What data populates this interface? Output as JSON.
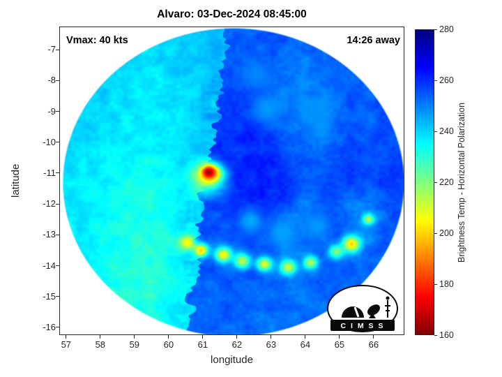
{
  "title": "Alvaro: 03-Dec-2024 08:45:00",
  "annotations": {
    "vmax": "Vmax: 40 kts",
    "time_away": "14:26 away"
  },
  "logo": {
    "text": "C I M S S"
  },
  "chart_data": {
    "type": "heatmap",
    "title": "Alvaro: 03-Dec-2024 08:45:00",
    "xlabel": "longitude",
    "ylabel": "latitude",
    "xlim": [
      56.8,
      66.9
    ],
    "ylim": [
      -16.25,
      -6.25
    ],
    "x_ticks": [
      57,
      58,
      59,
      60,
      61,
      62,
      63,
      64,
      65,
      66
    ],
    "y_ticks": [
      -7,
      -8,
      -9,
      -10,
      -11,
      -12,
      -13,
      -14,
      -15,
      -16
    ],
    "grid_on": false,
    "legend": "colorbar-right",
    "colorbar": {
      "label": "Brightness Temp - Horizontal Polarization",
      "min": 160,
      "max": 280,
      "ticks": [
        160,
        180,
        200,
        220,
        240,
        260,
        280
      ],
      "colormap": "jet_reversed"
    },
    "disk": {
      "center_lon": 61.9,
      "center_lat": -11.3,
      "radius_deg": 5.0
    },
    "swath_edge": {
      "description": "jagged boundary between warmer cyan swath (west, ~232-244 K) and colder blue swath (east, ~248-262 K)",
      "lon_at_lat": [
        [
          -7,
          61.6
        ],
        [
          -11,
          61.15
        ],
        [
          -15,
          60.66
        ]
      ]
    },
    "grid": {
      "lon_start": 56.9,
      "lon_end": 66.9,
      "lat_start": -6.3,
      "lat_end": -16.3,
      "values": [
        [
          242,
          242,
          242,
          242,
          241,
          241,
          240,
          240,
          241,
          242,
          252,
          253,
          254,
          254,
          253,
          253,
          252,
          252,
          252,
          252,
          252
        ],
        [
          243,
          243,
          242,
          241,
          240,
          239,
          239,
          240,
          241,
          243,
          253,
          255,
          255,
          254,
          253,
          252,
          251,
          251,
          250,
          251,
          252
        ],
        [
          242,
          242,
          241,
          240,
          238,
          238,
          239,
          240,
          241,
          246,
          255,
          256,
          255,
          250,
          249,
          251,
          252,
          252,
          251,
          252,
          253
        ],
        [
          241,
          241,
          240,
          239,
          238,
          237,
          238,
          239,
          240,
          250,
          257,
          257,
          255,
          251,
          248,
          250,
          253,
          254,
          253,
          254,
          254
        ],
        [
          240,
          240,
          239,
          238,
          237,
          236,
          237,
          238,
          240,
          254,
          258,
          259,
          257,
          253,
          250,
          247,
          252,
          255,
          254,
          255,
          255
        ],
        [
          240,
          239,
          238,
          237,
          236,
          235,
          236,
          238,
          241,
          254,
          259,
          260,
          259,
          256,
          253,
          250,
          254,
          256,
          255,
          256,
          256
        ],
        [
          239,
          238,
          237,
          236,
          235,
          234,
          236,
          238,
          242,
          252,
          260,
          261,
          260,
          258,
          255,
          253,
          256,
          257,
          256,
          257,
          257
        ],
        [
          238,
          238,
          236,
          235,
          234,
          233,
          235,
          237,
          241,
          250,
          259,
          261,
          261,
          259,
          257,
          255,
          257,
          258,
          257,
          257,
          257
        ],
        [
          238,
          237,
          236,
          234,
          233,
          232,
          234,
          236,
          244,
          252,
          258,
          260,
          260,
          258,
          250,
          253,
          257,
          250,
          248,
          255,
          256
        ],
        [
          237,
          237,
          235,
          233,
          232,
          231,
          233,
          236,
          248,
          254,
          257,
          258,
          257,
          248,
          252,
          255,
          256,
          252,
          249,
          254,
          255
        ],
        [
          237,
          236,
          235,
          233,
          231,
          230,
          232,
          236,
          250,
          253,
          255,
          256,
          254,
          250,
          252,
          254,
          255,
          249,
          252,
          254,
          254
        ],
        [
          236,
          236,
          234,
          232,
          231,
          230,
          232,
          237,
          252,
          254,
          255,
          255,
          253,
          251,
          250,
          253,
          254,
          253,
          253,
          253,
          253
        ],
        [
          236,
          235,
          234,
          232,
          231,
          230,
          233,
          238,
          252,
          254,
          254,
          254,
          253,
          252,
          252,
          253,
          253,
          252,
          252,
          252,
          252
        ],
        [
          236,
          235,
          234,
          233,
          232,
          231,
          234,
          240,
          251,
          253,
          253,
          253,
          252,
          252,
          252,
          252,
          252,
          252,
          252,
          252,
          252
        ],
        [
          236,
          236,
          235,
          234,
          233,
          232,
          235,
          242,
          250,
          252,
          252,
          252,
          252,
          251,
          251,
          251,
          251,
          251,
          251,
          251,
          251
        ]
      ]
    },
    "features": [
      {
        "name": "eyewall-halo",
        "lon": 61.1,
        "lat": -11.15,
        "value": 212,
        "sigma": 0.32
      },
      {
        "name": "eyewall-ring",
        "lon": 61.25,
        "lat": -11.0,
        "value": 190,
        "sigma": 0.2
      },
      {
        "name": "hot-core",
        "lon": 61.17,
        "lat": -10.97,
        "value": 163,
        "sigma": 0.12
      },
      {
        "name": "convection-cell",
        "lon": 60.55,
        "lat": -13.25,
        "value": 204,
        "sigma": 0.17
      },
      {
        "name": "convection-cell",
        "lon": 60.95,
        "lat": -13.5,
        "value": 200,
        "sigma": 0.15
      },
      {
        "name": "convection-cell",
        "lon": 61.6,
        "lat": -13.65,
        "value": 204,
        "sigma": 0.17
      },
      {
        "name": "convection-cell",
        "lon": 62.15,
        "lat": -13.85,
        "value": 213,
        "sigma": 0.18
      },
      {
        "name": "convection-cell",
        "lon": 62.8,
        "lat": -13.95,
        "value": 208,
        "sigma": 0.16
      },
      {
        "name": "convection-cell",
        "lon": 63.5,
        "lat": -14.05,
        "value": 211,
        "sigma": 0.17
      },
      {
        "name": "convection-cell",
        "lon": 64.15,
        "lat": -13.9,
        "value": 214,
        "sigma": 0.15
      },
      {
        "name": "convection-cell",
        "lon": 64.9,
        "lat": -13.55,
        "value": 220,
        "sigma": 0.16
      },
      {
        "name": "convection-cell",
        "lon": 65.35,
        "lat": -13.3,
        "value": 200,
        "sigma": 0.18
      },
      {
        "name": "convection-cell",
        "lon": 65.85,
        "lat": -12.5,
        "value": 214,
        "sigma": 0.12
      },
      {
        "name": "rainband-streak",
        "lon": 62.4,
        "lat": -12.55,
        "value": 245,
        "sigma": 0.28
      },
      {
        "name": "rainband-streak",
        "lon": 63.3,
        "lat": -12.95,
        "value": 246,
        "sigma": 0.3
      },
      {
        "name": "rainband-streak",
        "lon": 64.35,
        "lat": -12.7,
        "value": 247,
        "sigma": 0.3
      },
      {
        "name": "rainband-streak",
        "lon": 62.9,
        "lat": -8.9,
        "value": 247,
        "sigma": 0.35
      },
      {
        "name": "rainband-streak",
        "lon": 64.2,
        "lat": -9.1,
        "value": 248,
        "sigma": 0.3
      },
      {
        "name": "rainband-streak",
        "lon": 62.6,
        "lat": -7.8,
        "value": 249,
        "sigma": 0.3
      }
    ],
    "noise": {
      "fine_amp": 1.8,
      "coarse_amp": 2.6
    }
  }
}
